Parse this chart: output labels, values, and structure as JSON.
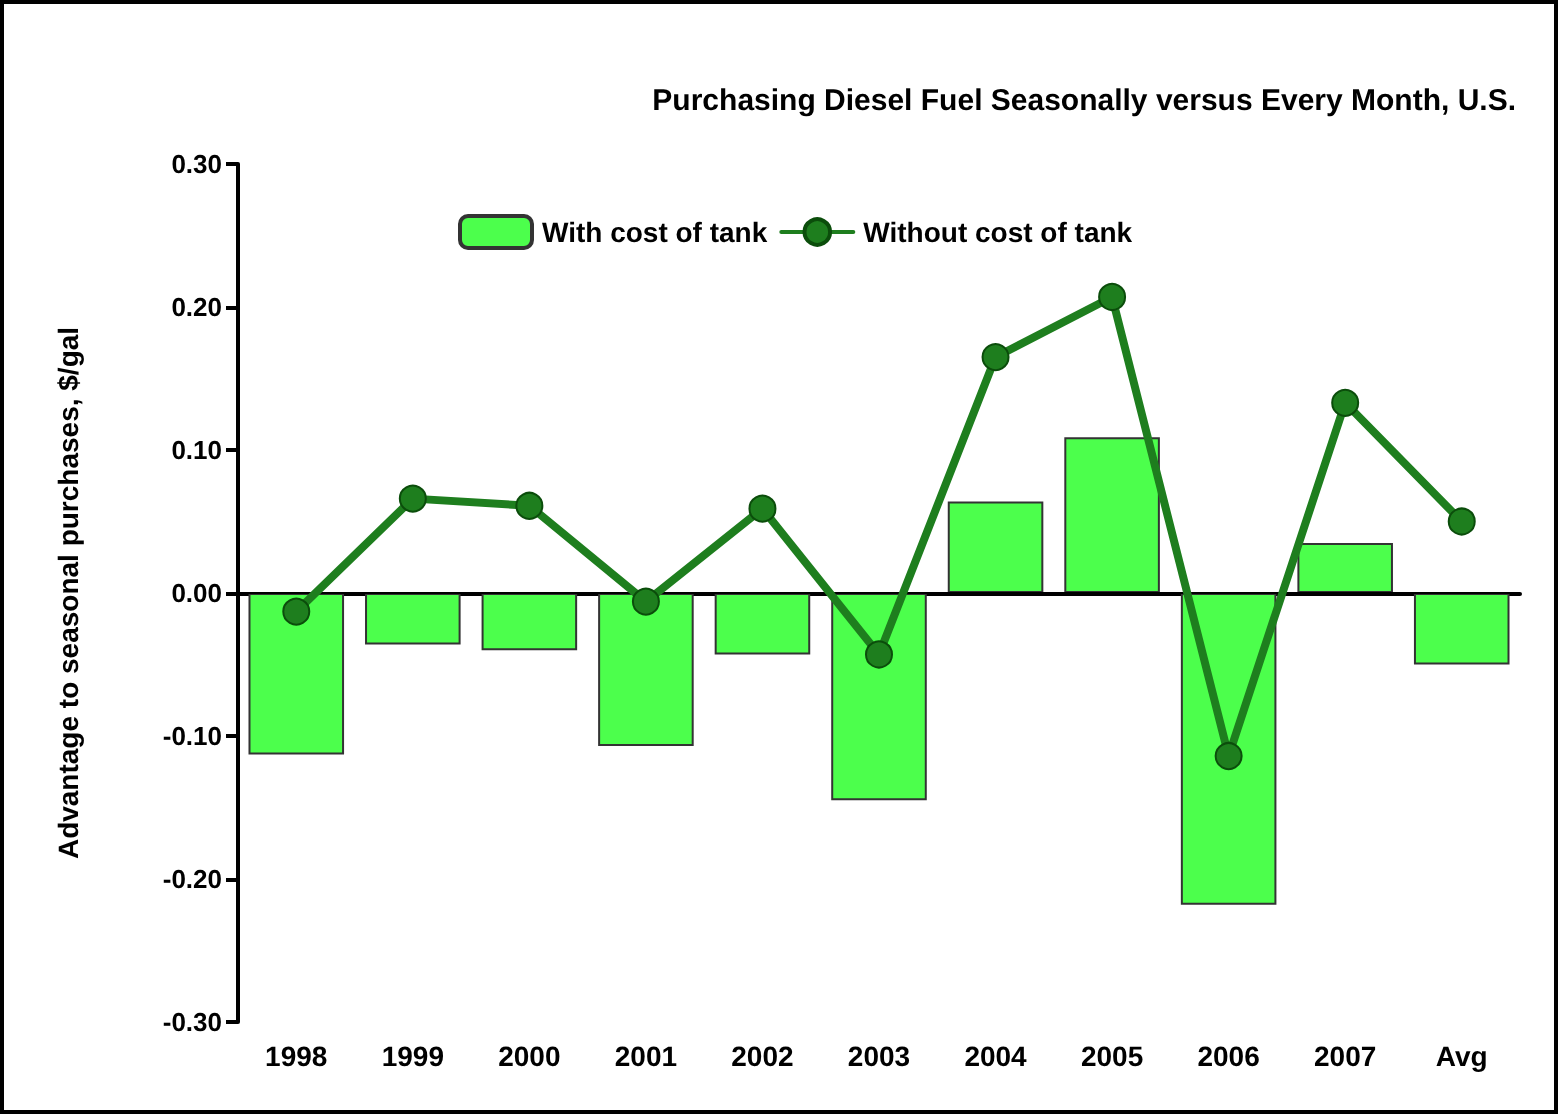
{
  "chart_data": {
    "type": "bar",
    "title": "Purchasing Diesel Fuel Seasonally versus Every Month, U.S.",
    "ylabel": "Advantage to seasonal purchases, $/gal",
    "categories": [
      "1998",
      "1999",
      "2000",
      "2001",
      "2002",
      "2003",
      "2004",
      "2005",
      "2006",
      "2007",
      "Avg"
    ],
    "series": [
      {
        "name": "With cost of tank",
        "color": "#4cff4c",
        "values": [
          -0.113,
          -0.036,
          -0.04,
          -0.107,
          -0.043,
          -0.145,
          0.064,
          0.109,
          -0.218,
          0.035,
          -0.05
        ]
      },
      {
        "name": "Without cost of tank",
        "type": "line",
        "color": "#1e7e1e",
        "marker": "circle",
        "line_style": "solid",
        "values": [
          -0.013,
          0.066,
          0.061,
          -0.006,
          0.059,
          -0.043,
          0.165,
          0.207,
          -0.114,
          0.133,
          0.05
        ]
      }
    ],
    "ylim": [
      -0.3,
      0.3
    ],
    "yticks": [
      {
        "value": -0.3,
        "label": "-0.30"
      },
      {
        "value": -0.2,
        "label": "-0.20"
      },
      {
        "value": -0.1,
        "label": "-0.10"
      },
      {
        "value": 0,
        "label": "0.00"
      },
      {
        "value": 0.1,
        "label": "0.10"
      },
      {
        "value": 0.2,
        "label": "0.20"
      },
      {
        "value": 0.3,
        "label": "0.30"
      }
    ],
    "ref_lines": [
      {
        "axis": "y",
        "value": 0,
        "color": "#000000"
      }
    ],
    "grid": false,
    "legend": "top"
  }
}
